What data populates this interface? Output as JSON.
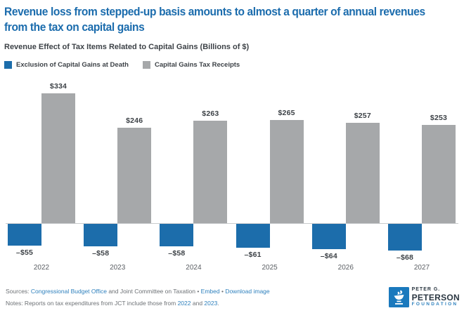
{
  "title": {
    "line1": "Revenue loss from stepped-up basis amounts to almost a quarter of annual revenues",
    "line2": "from the tax on capital gains"
  },
  "subtitle": "Revenue Effect of Tax Items Related to Capital Gains (Billions of $)",
  "legend": [
    {
      "label": "Exclusion of Capital Gains at Death",
      "color": "#1c6dab"
    },
    {
      "label": "Capital Gains Tax Receipts",
      "color": "#a6a8aa"
    }
  ],
  "chart_data": {
    "type": "bar",
    "title": "Revenue Effect of Tax Items Related to Capital Gains (Billions of $)",
    "categories": [
      "2022",
      "2023",
      "2024",
      "2025",
      "2026",
      "2027"
    ],
    "series": [
      {
        "name": "Exclusion of Capital Gains at Death",
        "color": "#1c6dab",
        "values": [
          -55,
          -58,
          -58,
          -61,
          -64,
          -68
        ],
        "labels": [
          "–$55",
          "–$58",
          "–$58",
          "–$61",
          "–$64",
          "–$68"
        ]
      },
      {
        "name": "Capital Gains Tax Receipts",
        "color": "#a6a8aa",
        "values": [
          334,
          246,
          263,
          265,
          257,
          253
        ],
        "labels": [
          "$334",
          "$246",
          "$263",
          "$265",
          "$257",
          "$253"
        ]
      }
    ],
    "xlabel": "",
    "ylabel": "",
    "ylim": [
      -80,
      360
    ],
    "grid": false,
    "legend_position": "top-left"
  },
  "footer": {
    "sources_prefix": "Sources: ",
    "source_link1": "Congressional Budget Office",
    "sources_mid": " and Joint Committee on Taxation ",
    "bullet1": "• ",
    "embed_label": "Embed",
    "bullet2": " • ",
    "download_label": "Download image",
    "notes_prefix": "Notes: Reports on tax expenditures from JCT include those from ",
    "notes_link1": "2022",
    "notes_and": " and ",
    "notes_link2": "2023",
    "notes_period": "."
  },
  "logo": {
    "line1": "PETER G.",
    "line2": "PETERSON",
    "line3": "FOUNDATION"
  }
}
